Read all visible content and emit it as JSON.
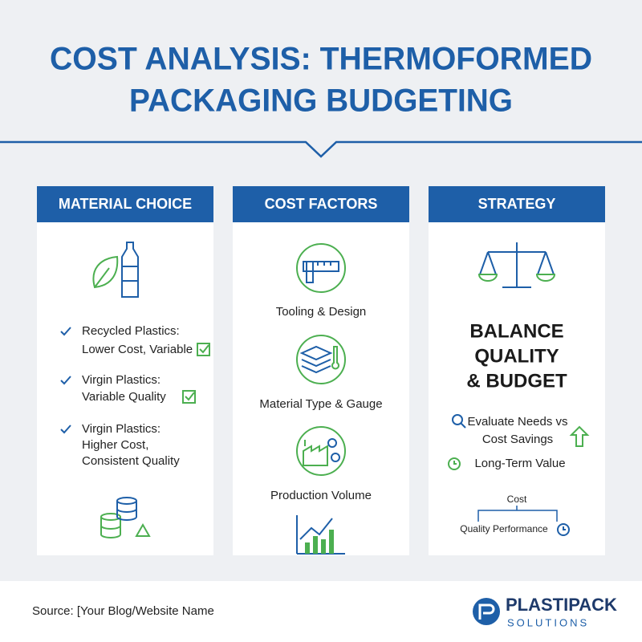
{
  "header": {
    "title": [
      "COST ANALYSIS: THERMOFORMED",
      "PACKAGING BUDGETING"
    ]
  },
  "columns": [
    {
      "title": "MATERIAL CHOICE",
      "items": [
        [
          "Recycled Plastics:",
          "Lower Cost, Variable"
        ],
        [
          "Virgin Plastics:",
          "Variable Quality"
        ],
        [
          "Virgin Plastics:",
          "Higher Cost,",
          "Consistent Quality"
        ]
      ]
    },
    {
      "title": "COST FACTORS",
      "items": [
        "Tooling & Design",
        "Material Type & Gauge",
        "Production Volume"
      ]
    },
    {
      "title": "STRATEGY",
      "headline": [
        "BALANCE",
        "QUALITY",
        "& BUDGET"
      ],
      "items": [
        [
          "Evaluate Needs vs",
          "Cost Savings"
        ],
        [
          "Long-Term Value"
        ]
      ],
      "diagram": {
        "top": "Cost",
        "bottom": "Quality Performance"
      }
    }
  ],
  "footer": {
    "source": "Source: [Your Blog/Website Name",
    "logo": {
      "name": "PLASTIPACK",
      "tagline": "SOLUTIONS"
    }
  }
}
